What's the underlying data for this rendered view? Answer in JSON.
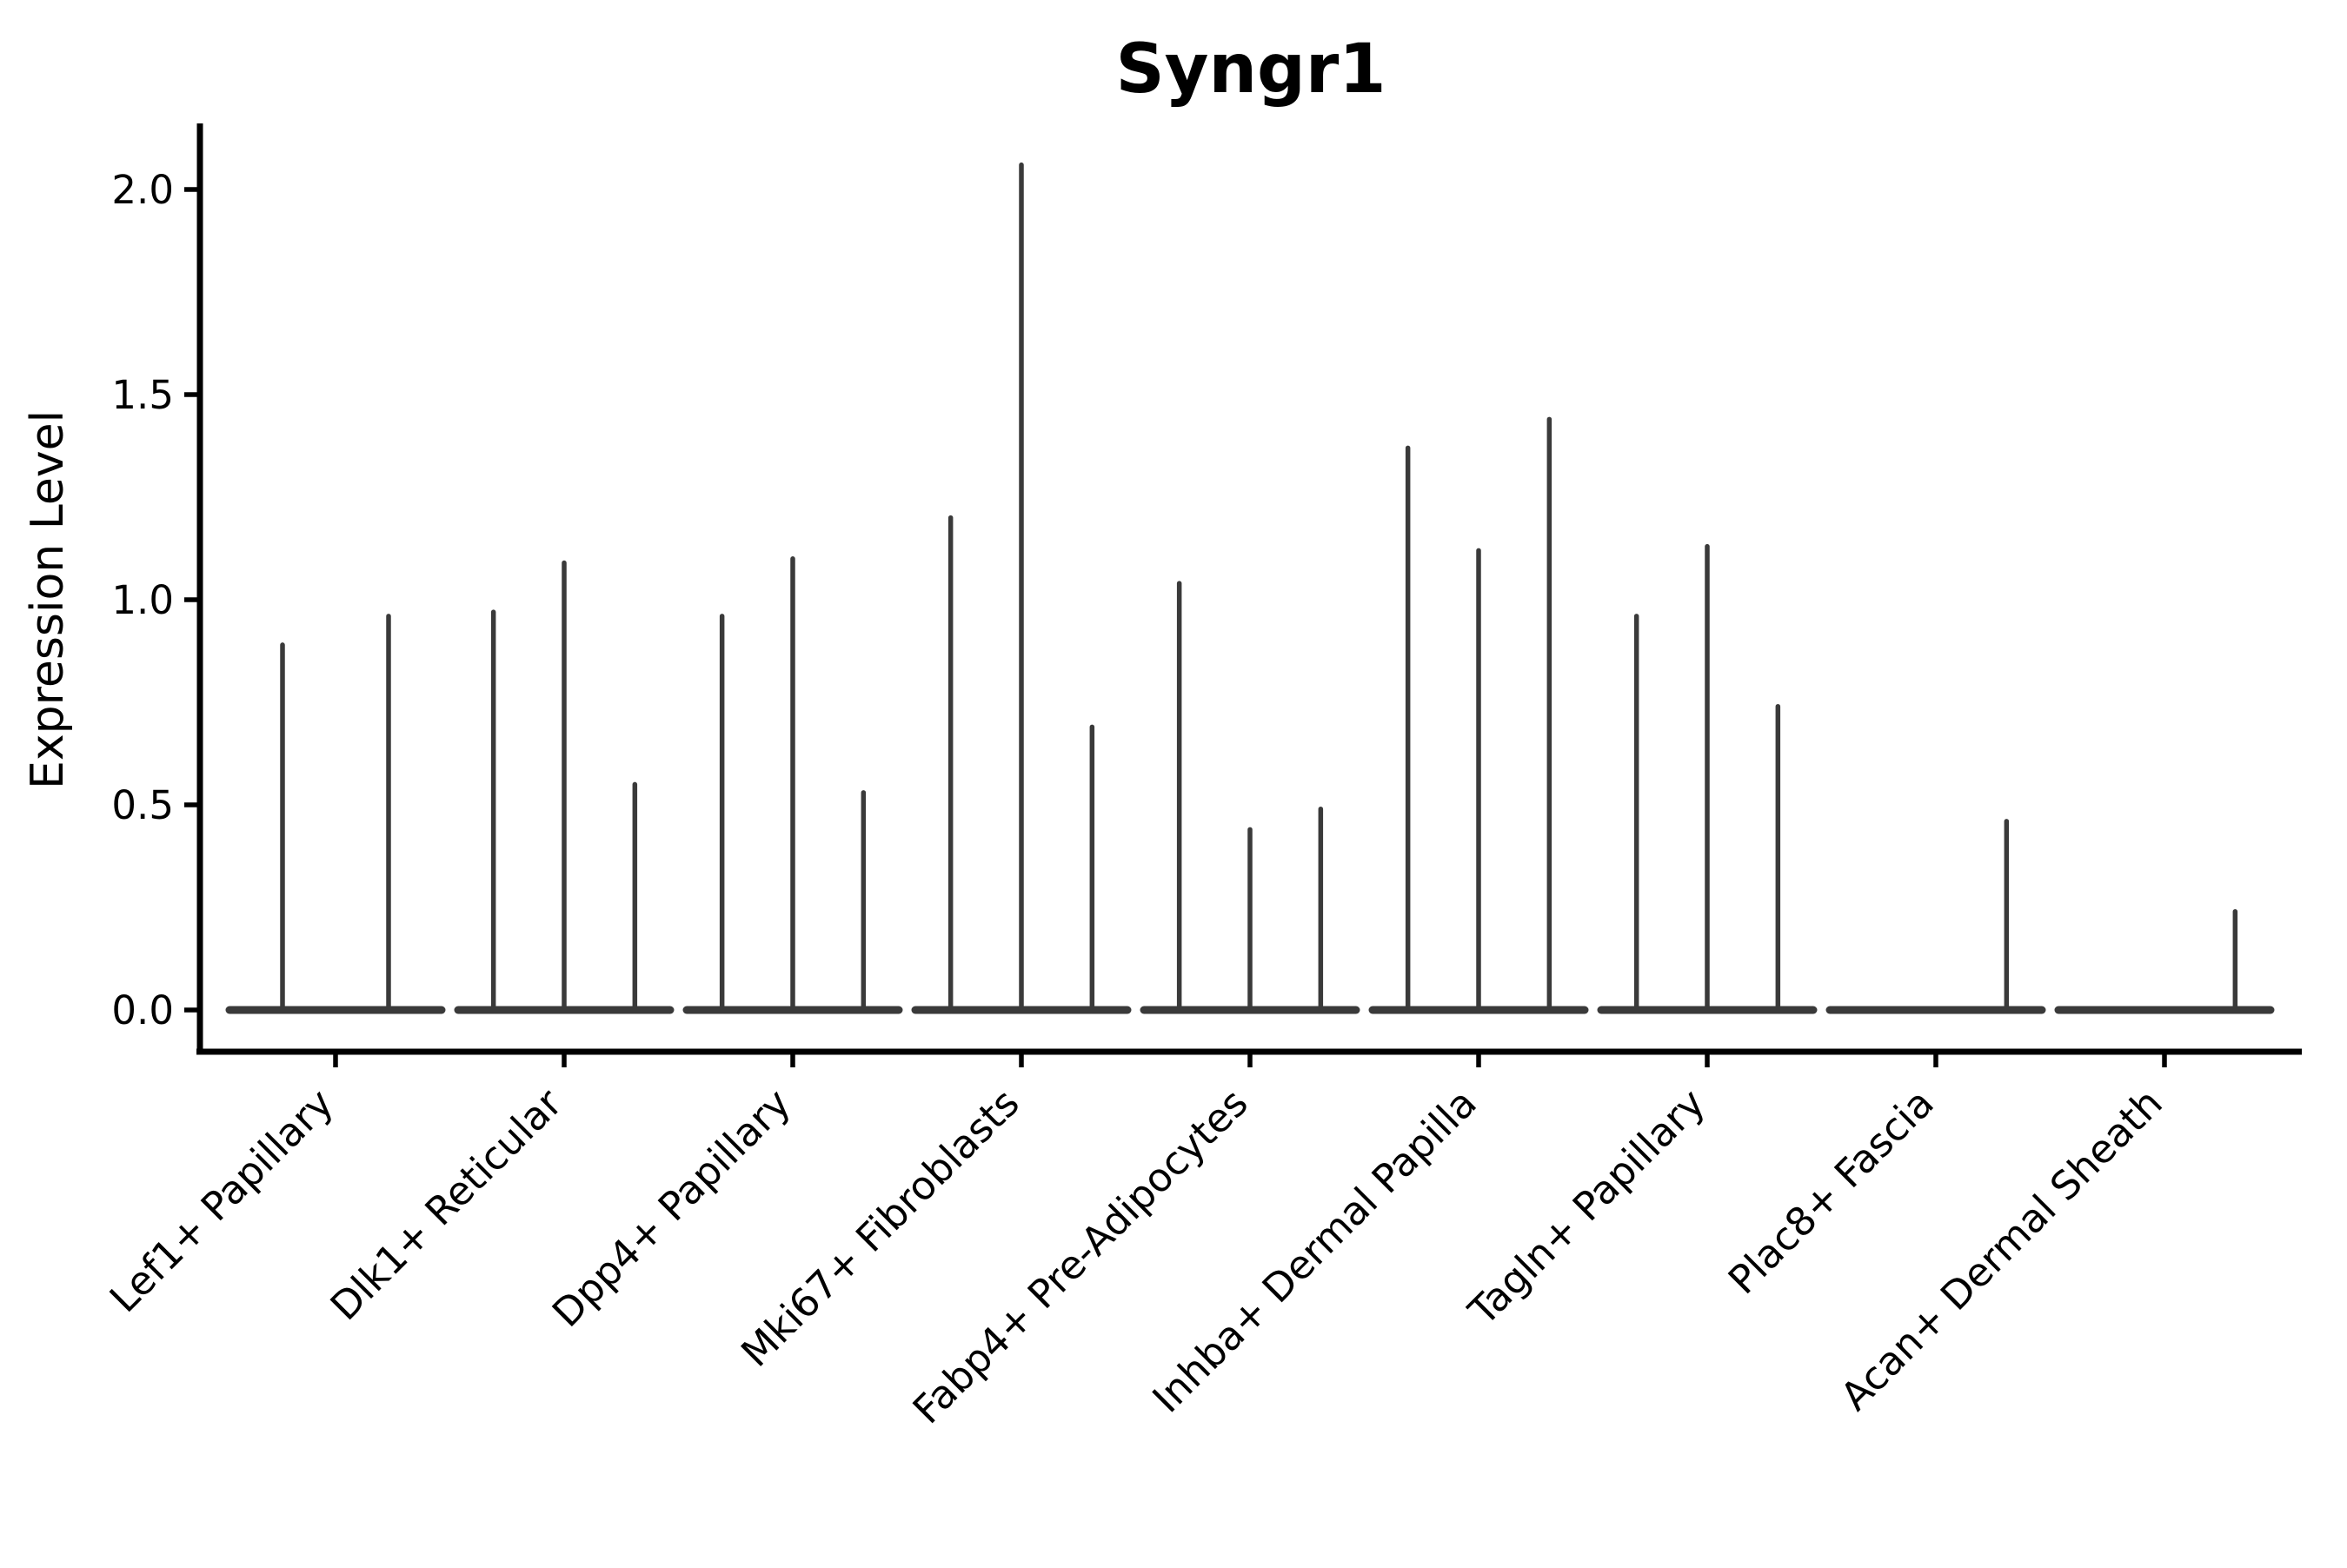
{
  "figure": {
    "title": "Syngr1"
  },
  "y_axis": {
    "label": "Expression Level",
    "tick_labels": [
      "0.0",
      "0.5",
      "1.0",
      "1.5",
      "2.0"
    ]
  },
  "x_axis": {
    "label": "",
    "tick_labels": [
      "Lef1+ Papillary",
      "Dlk1+ Reticular",
      "Dpp4+ Papillary",
      "Mki67+ Fibroblasts",
      "Fabp4+ Pre-Adipocytes",
      "Inhba+ Dermal Papilla",
      "Tagln+ Papillary",
      "Plac8+ Fascia",
      "Acan+ Dermal Sheath"
    ]
  },
  "colors": {
    "violin_stroke": "#3a3a3a",
    "axis": "#000000",
    "background": "#ffffff"
  },
  "chart_data": {
    "type": "violin",
    "title": "Syngr1",
    "xlabel": "",
    "ylabel": "Expression Level",
    "ylim": [
      0,
      2.15
    ],
    "yticks": [
      0.0,
      0.5,
      1.0,
      1.5,
      2.0
    ],
    "ytick_labels": [
      "0.0",
      "0.5",
      "1.0",
      "1.5",
      "2.0"
    ],
    "grid": false,
    "legend_position": "none",
    "style_note": "Seurat-style VlnPlot: each category holds dodged sub-violins collapsed to a flat baseline at 0 with a thin vertical spike up to the maximum expression value; spike_maxima of 0 means a flat sub-violin with no spike",
    "categories": [
      "Lef1+ Papillary",
      "Dlk1+ Reticular",
      "Dpp4+ Papillary",
      "Mki67+ Fibroblasts",
      "Fabp4+ Pre-Adipocytes",
      "Inhba+ Dermal Papilla",
      "Tagln+ Papillary",
      "Plac8+ Fascia",
      "Acan+ Dermal Sheath"
    ],
    "series": [
      {
        "category": "Lef1+ Papillary",
        "spike_maxima": [
          0.89,
          0.96
        ]
      },
      {
        "category": "Dlk1+ Reticular",
        "spike_maxima": [
          0.97,
          1.09,
          0.55
        ]
      },
      {
        "category": "Dpp4+ Papillary",
        "spike_maxima": [
          0.96,
          1.1,
          0.53
        ]
      },
      {
        "category": "Mki67+ Fibroblasts",
        "spike_maxima": [
          1.2,
          2.06,
          0.69
        ]
      },
      {
        "category": "Fabp4+ Pre-Adipocytes",
        "spike_maxima": [
          1.04,
          0.44,
          0.49
        ]
      },
      {
        "category": "Inhba+ Dermal Papilla",
        "spike_maxima": [
          1.37,
          1.12,
          1.44
        ]
      },
      {
        "category": "Tagln+ Papillary",
        "spike_maxima": [
          0.96,
          1.13,
          0.74
        ]
      },
      {
        "category": "Plac8+ Fascia",
        "spike_maxima": [
          0.0,
          0.0,
          0.46
        ]
      },
      {
        "category": "Acan+ Dermal Sheath",
        "spike_maxima": [
          0.0,
          0.0,
          0.24
        ]
      }
    ]
  }
}
